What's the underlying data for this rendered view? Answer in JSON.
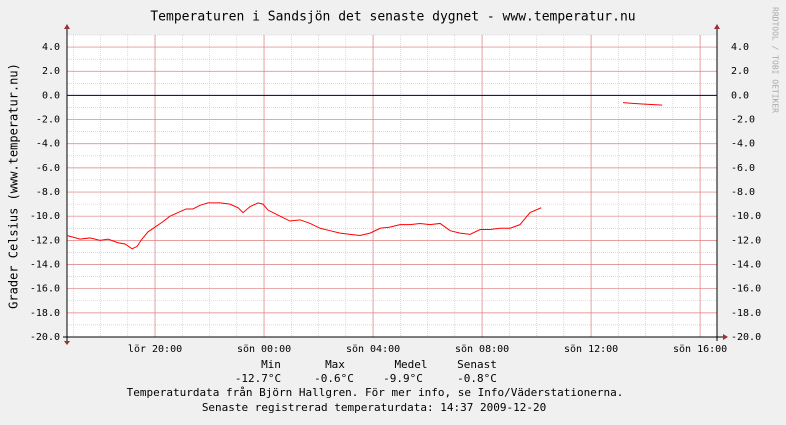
{
  "chart_data": {
    "type": "line",
    "title": "Temperaturen i Sandsjön det senaste dygnet - www.temperatur.nu",
    "y_label": "Grader Celsius (www.temperatur.nu)",
    "watermark": "RRDTOOL / TOBI OETIKER",
    "x": [
      16.77,
      17.25,
      17.61,
      17.98,
      18.28,
      18.64,
      18.9,
      19.16,
      19.34,
      19.52,
      19.74,
      20.0,
      20.26,
      20.55,
      20.84,
      21.14,
      21.39,
      21.65,
      21.94,
      22.39,
      22.75,
      23.05,
      23.23,
      23.49,
      23.78,
      23.96,
      24.15,
      24.59,
      24.95,
      25.32,
      25.69,
      26.06,
      26.42,
      26.79,
      27.16,
      27.52,
      27.89,
      28.26,
      28.62,
      28.99,
      29.36,
      29.72,
      30.09,
      30.46,
      30.83,
      31.19,
      31.56,
      31.93,
      32.29,
      32.66,
      33.03,
      33.39,
      33.76,
      34.17,
      36.0,
      37.17,
      37.8,
      38.61
    ],
    "series": [
      {
        "name": "Temperatur",
        "color": "#ff0000",
        "values": [
          -11.6,
          -11.9,
          -11.8,
          -12.0,
          -11.9,
          -12.2,
          -12.3,
          -12.7,
          -12.5,
          -11.9,
          -11.3,
          -10.9,
          -10.5,
          -10.0,
          -9.7,
          -9.4,
          -9.4,
          -9.1,
          -8.9,
          -8.9,
          -9.0,
          -9.3,
          -9.7,
          -9.2,
          -8.9,
          -9.0,
          -9.5,
          -10.0,
          -10.4,
          -10.3,
          -10.6,
          -11.0,
          -11.2,
          -11.4,
          -11.5,
          -11.6,
          -11.4,
          -11.0,
          -10.9,
          -10.7,
          -10.7,
          -10.6,
          -10.7,
          -10.6,
          -11.2,
          -11.4,
          -11.5,
          -11.1,
          -11.1,
          -11.0,
          -11.0,
          -10.7,
          -9.7,
          -9.3,
          null,
          -0.6,
          -0.7,
          -0.8
        ]
      }
    ],
    "xlim": [
      16.77,
      40.62
    ],
    "xticks": [
      {
        "value": 20,
        "label": "lör 20:00"
      },
      {
        "value": 24,
        "label": "sön 00:00"
      },
      {
        "value": 28,
        "label": "sön 04:00"
      },
      {
        "value": 32,
        "label": "sön 08:00"
      },
      {
        "value": 36,
        "label": "sön 12:00"
      },
      {
        "value": 40,
        "label": "sön 16:00"
      }
    ],
    "ylim": [
      -20,
      5
    ],
    "yticks": [
      {
        "value": 4,
        "label": "4.0"
      },
      {
        "value": 2,
        "label": "2.0"
      },
      {
        "value": 0,
        "label": "0.0"
      },
      {
        "value": -2,
        "label": "-2.0"
      },
      {
        "value": -4,
        "label": "-4.0"
      },
      {
        "value": -6,
        "label": "-6.0"
      },
      {
        "value": -8,
        "label": "-8.0"
      },
      {
        "value": -10,
        "label": "-10.0"
      },
      {
        "value": -12,
        "label": "-12.0"
      },
      {
        "value": -14,
        "label": "-14.0"
      },
      {
        "value": -16,
        "label": "-16.0"
      },
      {
        "value": -18,
        "label": "-18.0"
      },
      {
        "value": -20,
        "label": "-20.0"
      }
    ],
    "grid": true,
    "zero_line_color": "#000066",
    "summary": {
      "headers": [
        "Min",
        "Max",
        "Medel",
        "Senast"
      ],
      "values": [
        "-12.7°C",
        "-0.6°C",
        "-9.9°C",
        "-0.8°C"
      ]
    },
    "footer": [
      "Temperaturdata från Björn Hallgren. För mer info, se Info/Väderstationerna.",
      "Senaste registrerad temperaturdata: 14:37 2009-12-20"
    ]
  }
}
